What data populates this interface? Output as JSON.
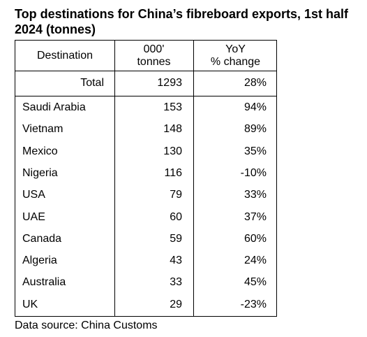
{
  "title": "Top destinations for China’s fibreboard exports, 1st half 2024 (tonnes)",
  "source": "Data source: China Customs",
  "chart_data": {
    "type": "table",
    "title": "Top destinations for China’s fibreboard exports, 1st half 2024 (tonnes)",
    "columns": [
      "Destination",
      "000' tonnes",
      "YoY % change"
    ],
    "total": {
      "label": "Total",
      "tonnes": "1293",
      "yoy": "28%"
    },
    "rows": [
      {
        "destination": "Saudi Arabia",
        "tonnes": "153",
        "yoy": "94%"
      },
      {
        "destination": "Vietnam",
        "tonnes": "148",
        "yoy": "89%"
      },
      {
        "destination": "Mexico",
        "tonnes": "130",
        "yoy": "35%"
      },
      {
        "destination": "Nigeria",
        "tonnes": "116",
        "yoy": "-10%"
      },
      {
        "destination": "USA",
        "tonnes": "79",
        "yoy": "33%"
      },
      {
        "destination": "UAE",
        "tonnes": "60",
        "yoy": "37%"
      },
      {
        "destination": "Canada",
        "tonnes": "59",
        "yoy": "60%"
      },
      {
        "destination": "Algeria",
        "tonnes": "43",
        "yoy": "24%"
      },
      {
        "destination": "Australia",
        "tonnes": "33",
        "yoy": "45%"
      },
      {
        "destination": "UK",
        "tonnes": "29",
        "yoy": "-23%"
      }
    ],
    "source": "Data source: China Customs"
  }
}
